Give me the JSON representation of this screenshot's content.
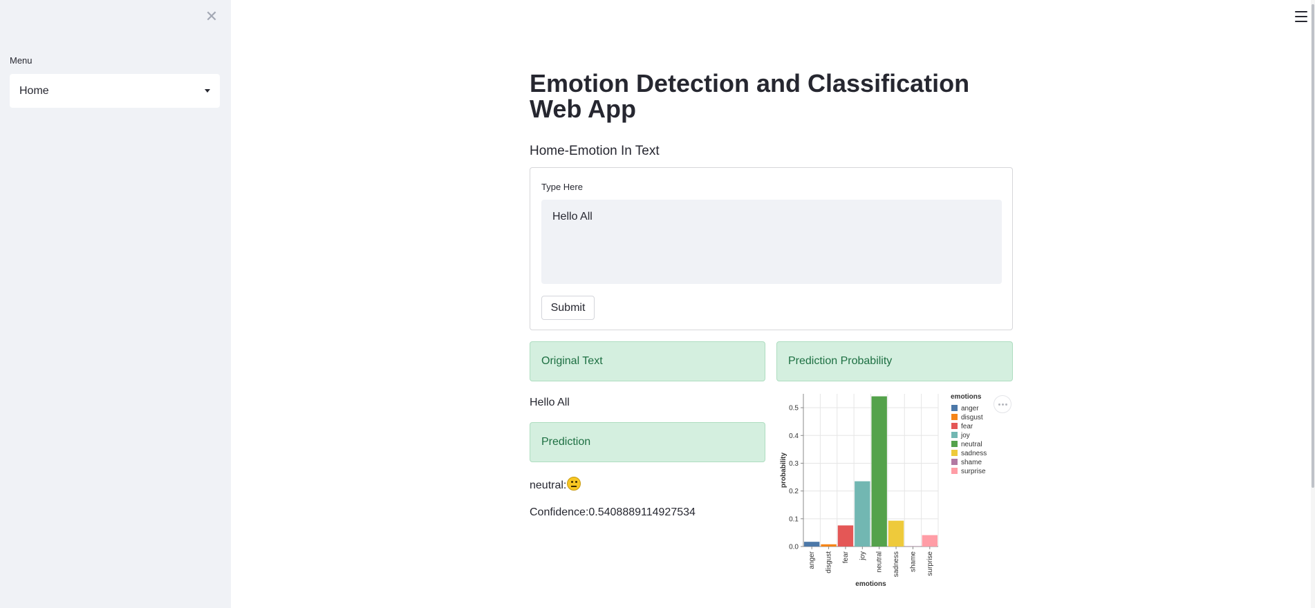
{
  "sidebar": {
    "menu_label": "Menu",
    "menu_value": "Home"
  },
  "main": {
    "title": "Emotion Detection and Classification Web App",
    "subtitle": "Home-Emotion In Text",
    "form": {
      "input_label": "Type Here",
      "input_value": "Hello All",
      "submit_label": "Submit"
    },
    "results": {
      "original_text_header": "Original Text",
      "original_text": "Hello All",
      "prediction_header": "Prediction",
      "prediction_label": "neutral:",
      "prediction_emoji": "neutral-face-emoji",
      "confidence_text": "Confidence:0.5408889114927534",
      "probability_header": "Prediction Probability"
    }
  },
  "chart_data": {
    "type": "bar",
    "categories": [
      "anger",
      "disgust",
      "fear",
      "joy",
      "neutral",
      "sadness",
      "shame",
      "surprise"
    ],
    "values": [
      0.017,
      0.008,
      0.076,
      0.235,
      0.541,
      0.093,
      0.001,
      0.041
    ],
    "colors": [
      "#4c78a8",
      "#f58518",
      "#e45756",
      "#72b7b2",
      "#54a24b",
      "#eeca3b",
      "#b279a2",
      "#ff9da6"
    ],
    "xlabel": "emotions",
    "ylabel": "probability",
    "yticks": [
      0.0,
      0.1,
      0.2,
      0.3,
      0.4,
      0.5
    ],
    "ylim": [
      0,
      0.55
    ],
    "legend_title": "emotions",
    "legend_position": "right",
    "grid": true
  }
}
